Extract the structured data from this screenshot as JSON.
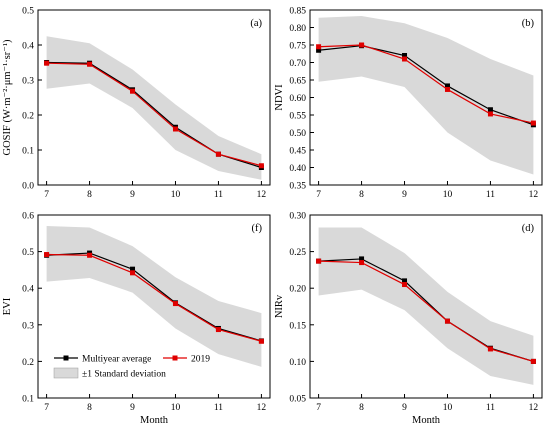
{
  "chart_data": [
    {
      "type": "line",
      "panel_label": "(a)",
      "xlabel": "",
      "ylabel": "GOSIF (W·m⁻²·μm⁻¹·sr⁻¹)",
      "x": [
        7,
        8,
        9,
        10,
        11,
        12
      ],
      "xlim": [
        6.8,
        12.2
      ],
      "ylim": [
        0,
        0.5
      ],
      "yticks": [
        0.0,
        0.1,
        0.2,
        0.3,
        0.4,
        0.5
      ],
      "ytick_labels": [
        "0.0",
        "0.1",
        "0.2",
        "0.3",
        "0.4",
        "0.5"
      ],
      "xtick_labels": [
        "7",
        "8",
        "9",
        "10",
        "11",
        "12"
      ],
      "series": [
        {
          "name": "Multiyear average",
          "color": "#000000",
          "values": [
            0.35,
            0.348,
            0.272,
            0.165,
            0.088,
            0.05
          ]
        },
        {
          "name": "2019",
          "color": "#e00000",
          "values": [
            0.348,
            0.345,
            0.268,
            0.16,
            0.088,
            0.055
          ]
        }
      ],
      "band": {
        "name": "±1 Standard deviation",
        "color": "#d9d9d9",
        "upper": [
          0.425,
          0.405,
          0.33,
          0.23,
          0.14,
          0.088
        ],
        "lower": [
          0.275,
          0.29,
          0.22,
          0.1,
          0.04,
          0.015
        ]
      }
    },
    {
      "type": "line",
      "panel_label": "(b)",
      "xlabel": "",
      "ylabel": "NDVI",
      "x": [
        7,
        8,
        9,
        10,
        11,
        12
      ],
      "xlim": [
        6.8,
        12.2
      ],
      "ylim": [
        0.35,
        0.85
      ],
      "yticks": [
        0.35,
        0.4,
        0.45,
        0.5,
        0.55,
        0.6,
        0.65,
        0.7,
        0.75,
        0.8,
        0.85
      ],
      "ytick_labels": [
        "0.35",
        "0.40",
        "0.45",
        "0.50",
        "0.55",
        "0.60",
        "0.65",
        "0.70",
        "0.75",
        "0.80",
        "0.85"
      ],
      "xtick_labels": [
        "7",
        "8",
        "9",
        "10",
        "11",
        "12"
      ],
      "series": [
        {
          "name": "Multiyear average",
          "color": "#000000",
          "values": [
            0.735,
            0.748,
            0.72,
            0.633,
            0.565,
            0.522
          ]
        },
        {
          "name": "2019",
          "color": "#e00000",
          "values": [
            0.745,
            0.75,
            0.71,
            0.623,
            0.553,
            0.527
          ]
        }
      ],
      "band": {
        "name": "±1 Standard deviation",
        "color": "#d9d9d9",
        "upper": [
          0.828,
          0.833,
          0.812,
          0.77,
          0.71,
          0.663
        ],
        "lower": [
          0.645,
          0.66,
          0.63,
          0.5,
          0.42,
          0.38
        ]
      }
    },
    {
      "type": "line",
      "panel_label": "(f)",
      "xlabel": "Month",
      "ylabel": "EVI",
      "x": [
        7,
        8,
        9,
        10,
        11,
        12
      ],
      "xlim": [
        6.8,
        12.2
      ],
      "ylim": [
        0.1,
        0.6
      ],
      "yticks": [
        0.1,
        0.2,
        0.3,
        0.4,
        0.5,
        0.6
      ],
      "ytick_labels": [
        "0.1",
        "0.2",
        "0.3",
        "0.4",
        "0.5",
        "0.6"
      ],
      "xtick_labels": [
        "7",
        "8",
        "9",
        "10",
        "11",
        "12"
      ],
      "series": [
        {
          "name": "Multiyear average",
          "color": "#000000",
          "values": [
            0.49,
            0.496,
            0.452,
            0.36,
            0.29,
            0.256
          ]
        },
        {
          "name": "2019",
          "color": "#e00000",
          "values": [
            0.492,
            0.49,
            0.442,
            0.358,
            0.287,
            0.255
          ]
        }
      ],
      "band": {
        "name": "±1 Standard deviation",
        "color": "#d9d9d9",
        "upper": [
          0.57,
          0.566,
          0.515,
          0.43,
          0.365,
          0.332
        ],
        "lower": [
          0.418,
          0.428,
          0.388,
          0.29,
          0.22,
          0.185
        ]
      }
    },
    {
      "type": "line",
      "panel_label": "(d)",
      "xlabel": "Month",
      "ylabel": "NIRv",
      "x": [
        7,
        8,
        9,
        10,
        11,
        12
      ],
      "xlim": [
        6.8,
        12.2
      ],
      "ylim": [
        0.05,
        0.3
      ],
      "yticks": [
        0.05,
        0.1,
        0.15,
        0.2,
        0.25,
        0.3
      ],
      "ytick_labels": [
        "0.05",
        "0.10",
        "0.15",
        "0.20",
        "0.25",
        "0.30"
      ],
      "xtick_labels": [
        "7",
        "8",
        "9",
        "10",
        "11",
        "12"
      ],
      "series": [
        {
          "name": "Multiyear average",
          "color": "#000000",
          "values": [
            0.237,
            0.24,
            0.21,
            0.155,
            0.118,
            0.1
          ]
        },
        {
          "name": "2019",
          "color": "#e00000",
          "values": [
            0.237,
            0.235,
            0.205,
            0.155,
            0.117,
            0.1
          ]
        }
      ],
      "band": {
        "name": "±1 Standard deviation",
        "color": "#d9d9d9",
        "upper": [
          0.283,
          0.283,
          0.248,
          0.195,
          0.155,
          0.135
        ],
        "lower": [
          0.19,
          0.198,
          0.17,
          0.118,
          0.08,
          0.068
        ]
      }
    }
  ],
  "legend": {
    "items": [
      {
        "label": "Multiyear average",
        "color": "#000000"
      },
      {
        "label": "2019",
        "color": "#e00000"
      },
      {
        "label": "±1 Standard deviation",
        "color": "#d9d9d9"
      }
    ]
  }
}
